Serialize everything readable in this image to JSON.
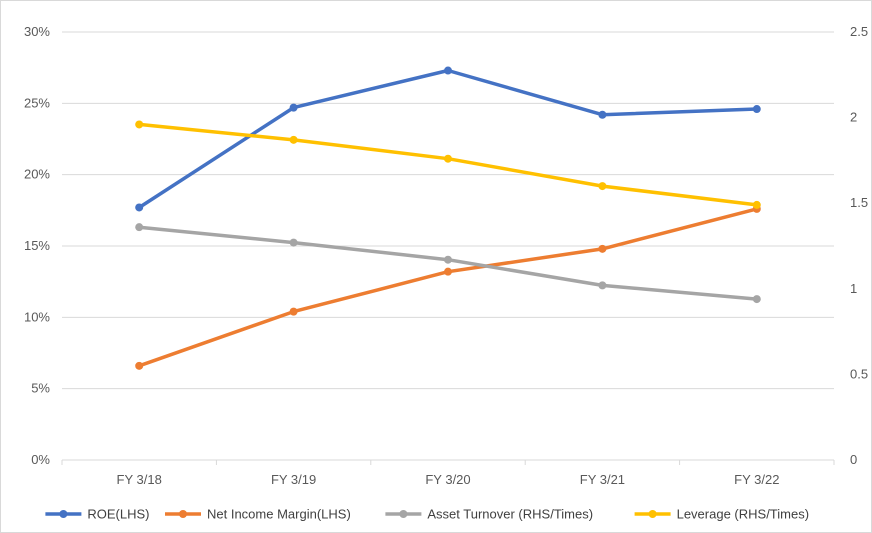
{
  "chart_data": {
    "type": "line",
    "title": "",
    "categories": [
      "FY 3/18",
      "FY 3/19",
      "FY 3/20",
      "FY 3/21",
      "FY 3/22"
    ],
    "y_left": {
      "min": 0,
      "max": 30,
      "step": 5,
      "tick_labels": [
        "0%",
        "5%",
        "10%",
        "15%",
        "20%",
        "25%",
        "30%"
      ]
    },
    "y_right": {
      "min": 0,
      "max": 2.5,
      "step": 0.5,
      "tick_labels": [
        "0",
        "0.5",
        "1",
        "1.5",
        "2",
        "2.5"
      ]
    },
    "grid": true,
    "legend_position": "bottom",
    "series": [
      {
        "name": "ROE(LHS)",
        "axis": "left",
        "color": "#4472C4",
        "values": [
          17.7,
          24.7,
          27.3,
          24.2,
          24.6
        ]
      },
      {
        "name": "Net Income Margin(LHS)",
        "axis": "left",
        "color": "#ED7D31",
        "values": [
          6.6,
          10.4,
          13.2,
          14.8,
          17.6
        ]
      },
      {
        "name": "Asset Turnover (RHS/Times)",
        "axis": "right",
        "color": "#A5A5A5",
        "values": [
          1.36,
          1.27,
          1.17,
          1.02,
          0.94
        ]
      },
      {
        "name": "Leverage (RHS/Times)",
        "axis": "right",
        "color": "#FFC000",
        "values": [
          1.96,
          1.87,
          1.76,
          1.6,
          1.49
        ]
      }
    ]
  }
}
